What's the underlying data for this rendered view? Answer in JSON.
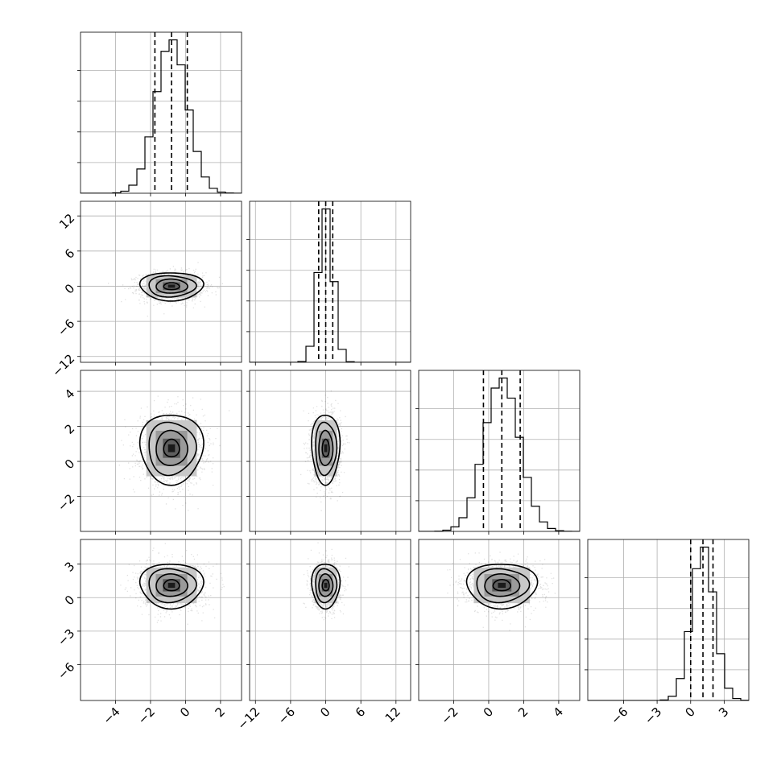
{
  "chart_data": {
    "type": "corner",
    "parameters": [
      {
        "range": [
          -6,
          3.2
        ],
        "ticks": [
          -4,
          -2,
          0,
          2
        ],
        "tick_labels": [
          "−4",
          "−2",
          "0",
          "2"
        ],
        "center": -0.8,
        "sigma": 0.9,
        "quantiles": [
          -1.75,
          -0.8,
          0.1
        ]
      },
      {
        "range": [
          -13,
          14.5
        ],
        "ticks": [
          -12,
          -6,
          0,
          6,
          12
        ],
        "tick_labels": [
          "−12",
          "−6",
          "0",
          "6",
          "12"
        ],
        "center": 0.0,
        "sigma": 1.2,
        "quantiles": [
          -1.2,
          0.0,
          1.2
        ]
      },
      {
        "range": [
          -4,
          5.2
        ],
        "ticks": [
          -2,
          0,
          2,
          4
        ],
        "tick_labels": [
          "−2",
          "0",
          "2",
          "4"
        ],
        "center": 0.75,
        "sigma": 1.0,
        "quantiles": [
          -0.3,
          0.75,
          1.8
        ]
      },
      {
        "range": [
          -9.2,
          5.2
        ],
        "ticks": [
          -6,
          -3,
          0,
          3
        ],
        "tick_labels": [
          "−6",
          "−3",
          "0",
          "3"
        ],
        "center": 1.1,
        "sigma": 1.0,
        "quantiles": [
          0.0,
          1.1,
          2.0
        ]
      }
    ],
    "histograms": [
      {
        "param": 0,
        "yticks": [
          0.2,
          0.4,
          0.6,
          0.8
        ]
      },
      {
        "param": 1,
        "yticks": [
          0.2,
          0.4,
          0.6,
          0.8
        ]
      },
      {
        "param": 2,
        "yticks": [
          0.2,
          0.4,
          0.6,
          0.8
        ]
      },
      {
        "param": 3,
        "yticks": [
          0.2,
          0.4,
          0.6,
          0.8
        ]
      }
    ],
    "grid": true,
    "quantile_line_style": "dashed"
  }
}
